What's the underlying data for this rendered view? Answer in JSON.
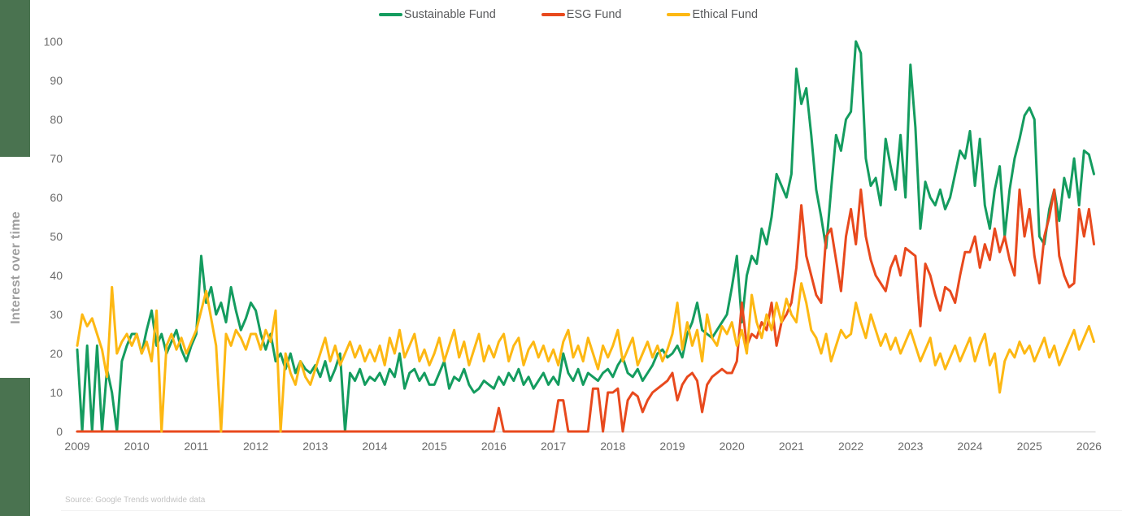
{
  "theme": {
    "accent_bar_color": "#4a7350",
    "axis_title_color": "#9e9e9e",
    "legend_text_color": "#58595b",
    "axis_text_color": "#6b6b6b",
    "baseline_color": "#d9d9d9",
    "source_text_color": "#c3c3c3"
  },
  "chart_data": {
    "type": "line",
    "title": "",
    "y_axis_title": "Interest over time",
    "source_note": "Source: Google Trends worldwide data",
    "frequency": "monthly",
    "x_start": "2009-01",
    "x_end": "2026-02",
    "x_tick_labels": [
      "2009",
      "2010",
      "2011",
      "2012",
      "2013",
      "2014",
      "2015",
      "2016",
      "2017",
      "2018",
      "2019",
      "2020",
      "2021",
      "2022",
      "2023",
      "2024",
      "2025",
      "2026"
    ],
    "y_ticks": [
      0,
      10,
      20,
      30,
      40,
      50,
      60,
      70,
      80,
      90,
      100
    ],
    "ylim": [
      0,
      100
    ],
    "grid": false,
    "legend_position": "top-center",
    "series": [
      {
        "name": "Sustainable Fund",
        "color": "#149c5f",
        "values": [
          21,
          0,
          22,
          0,
          22,
          0,
          16,
          10,
          0,
          18,
          22,
          25,
          25,
          20,
          26,
          31,
          22,
          25,
          20,
          23,
          26,
          21,
          18,
          22,
          25,
          45,
          33,
          37,
          30,
          33,
          28,
          37,
          31,
          26,
          29,
          33,
          31,
          25,
          21,
          25,
          18,
          20,
          16,
          20,
          15,
          18,
          16,
          15,
          17,
          14,
          18,
          13,
          16,
          20,
          0,
          15,
          13,
          16,
          12,
          14,
          13,
          15,
          12,
          16,
          14,
          20,
          11,
          15,
          16,
          13,
          15,
          12,
          12,
          15,
          18,
          11,
          14,
          13,
          16,
          12,
          10,
          11,
          13,
          12,
          11,
          14,
          12,
          15,
          13,
          16,
          12,
          14,
          11,
          13,
          15,
          12,
          14,
          12,
          20,
          15,
          13,
          16,
          12,
          15,
          14,
          13,
          15,
          16,
          14,
          17,
          19,
          15,
          14,
          16,
          13,
          15,
          17,
          20,
          21,
          19,
          20,
          22,
          19,
          25,
          28,
          33,
          26,
          25,
          24,
          26,
          28,
          30,
          37,
          45,
          28,
          40,
          45,
          43,
          52,
          48,
          55,
          66,
          63,
          60,
          66,
          93,
          84,
          88,
          76,
          62,
          55,
          47,
          62,
          76,
          72,
          80,
          82,
          100,
          97,
          70,
          63,
          65,
          58,
          75,
          68,
          62,
          76,
          60,
          94,
          78,
          52,
          64,
          60,
          58,
          62,
          57,
          60,
          66,
          72,
          70,
          77,
          63,
          75,
          58,
          52,
          62,
          68,
          50,
          62,
          70,
          75,
          81,
          83,
          80,
          50,
          48,
          57,
          62,
          54,
          65,
          60,
          70,
          58,
          72,
          71,
          66
        ]
      },
      {
        "name": "ESG Fund",
        "color": "#e8491d",
        "values": [
          0,
          0,
          0,
          0,
          0,
          0,
          0,
          0,
          0,
          0,
          0,
          0,
          0,
          0,
          0,
          0,
          0,
          0,
          0,
          0,
          0,
          0,
          0,
          0,
          0,
          0,
          0,
          0,
          0,
          0,
          0,
          0,
          0,
          0,
          0,
          0,
          0,
          0,
          0,
          0,
          0,
          0,
          0,
          0,
          0,
          0,
          0,
          0,
          0,
          0,
          0,
          0,
          0,
          0,
          0,
          0,
          0,
          0,
          0,
          0,
          0,
          0,
          0,
          0,
          0,
          0,
          0,
          0,
          0,
          0,
          0,
          0,
          0,
          0,
          0,
          0,
          0,
          0,
          0,
          0,
          0,
          0,
          0,
          0,
          0,
          6,
          0,
          0,
          0,
          0,
          0,
          0,
          0,
          0,
          0,
          0,
          0,
          8,
          8,
          0,
          0,
          0,
          0,
          0,
          11,
          11,
          0,
          10,
          10,
          11,
          0,
          8,
          10,
          9,
          5,
          8,
          10,
          11,
          12,
          13,
          15,
          8,
          12,
          14,
          15,
          13,
          5,
          12,
          14,
          15,
          16,
          15,
          15,
          18,
          33,
          22,
          25,
          24,
          28,
          26,
          33,
          22,
          28,
          30,
          33,
          42,
          58,
          45,
          40,
          35,
          33,
          50,
          52,
          44,
          36,
          50,
          57,
          48,
          62,
          50,
          44,
          40,
          38,
          36,
          42,
          45,
          40,
          47,
          46,
          45,
          27,
          43,
          40,
          35,
          31,
          37,
          36,
          33,
          40,
          46,
          46,
          50,
          42,
          48,
          44,
          52,
          46,
          50,
          44,
          40,
          62,
          50,
          57,
          45,
          38,
          50,
          55,
          62,
          45,
          40,
          37,
          38,
          57,
          50,
          57,
          48
        ]
      },
      {
        "name": "Ethical Fund",
        "color": "#fdb813",
        "values": [
          22,
          30,
          27,
          29,
          25,
          21,
          14,
          37,
          20,
          23,
          25,
          22,
          25,
          20,
          23,
          18,
          31,
          0,
          22,
          25,
          21,
          24,
          20,
          23,
          26,
          31,
          36,
          29,
          22,
          0,
          25,
          22,
          26,
          24,
          21,
          25,
          25,
          21,
          26,
          23,
          31,
          0,
          20,
          15,
          12,
          18,
          14,
          12,
          16,
          20,
          24,
          18,
          22,
          17,
          20,
          23,
          19,
          22,
          18,
          21,
          18,
          22,
          17,
          24,
          20,
          26,
          19,
          22,
          25,
          18,
          21,
          17,
          20,
          24,
          18,
          22,
          26,
          19,
          23,
          17,
          21,
          25,
          18,
          22,
          19,
          23,
          25,
          18,
          22,
          24,
          17,
          21,
          23,
          19,
          22,
          18,
          21,
          17,
          23,
          26,
          19,
          22,
          18,
          24,
          20,
          16,
          22,
          19,
          22,
          26,
          18,
          21,
          24,
          17,
          20,
          23,
          19,
          22,
          18,
          21,
          25,
          33,
          21,
          28,
          22,
          26,
          18,
          30,
          24,
          22,
          27,
          25,
          28,
          22,
          26,
          20,
          35,
          28,
          24,
          30,
          26,
          33,
          28,
          34,
          30,
          28,
          38,
          33,
          26,
          24,
          20,
          25,
          18,
          22,
          26,
          24,
          25,
          33,
          28,
          24,
          30,
          26,
          22,
          25,
          21,
          24,
          20,
          23,
          26,
          22,
          18,
          21,
          24,
          17,
          20,
          16,
          19,
          22,
          18,
          21,
          24,
          18,
          22,
          25,
          17,
          20,
          10,
          18,
          21,
          19,
          23,
          20,
          22,
          18,
          21,
          24,
          19,
          22,
          17,
          20,
          23,
          26,
          21,
          24,
          27,
          23
        ]
      }
    ]
  }
}
